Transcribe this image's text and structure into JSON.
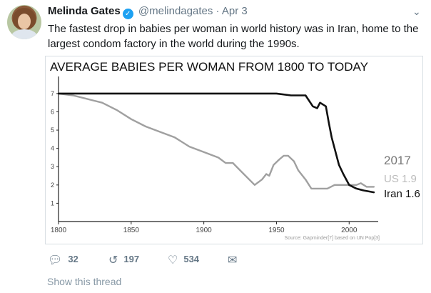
{
  "tweet": {
    "author_name": "Melinda Gates",
    "handle": "@melindagates",
    "separator": "·",
    "date": "Apr 3",
    "text": "The fastest drop in babies per woman in world history was in Iran, home to the largest condom factory in the world during the 1990s."
  },
  "actions": {
    "reply_count": "32",
    "retweet_count": "197",
    "like_count": "534"
  },
  "show_thread_label": "Show this thread",
  "colors": {
    "verified": "#1da1f2",
    "iran_line": "#111111",
    "us_line": "#a0a0a0"
  },
  "icons": {
    "reply": "reply-icon",
    "retweet": "retweet-icon",
    "like": "heart-icon",
    "dm": "envelope-icon",
    "menu": "chevron-down-icon"
  },
  "chart_data": {
    "type": "line",
    "title": "AVERAGE BABIES PER WOMAN FROM 1800 TO TODAY",
    "xlabel": "",
    "ylabel": "",
    "xlim": [
      1800,
      2020
    ],
    "ylim": [
      0,
      7.7
    ],
    "x_ticks": [
      "1800",
      "1850",
      "1900",
      "1950",
      "2000"
    ],
    "y_ticks": [
      "1",
      "2",
      "3",
      "4",
      "5",
      "6",
      "7"
    ],
    "grid": false,
    "source": "Source: Gapminder[7] based on UN Pop[3]",
    "end_label_year": "2017",
    "series": [
      {
        "name": "Iran",
        "end_label": "Iran 1.6",
        "points": [
          [
            1800,
            7.0
          ],
          [
            1850,
            7.0
          ],
          [
            1900,
            7.0
          ],
          [
            1930,
            7.0
          ],
          [
            1950,
            7.0
          ],
          [
            1960,
            6.9
          ],
          [
            1965,
            6.9
          ],
          [
            1970,
            6.9
          ],
          [
            1975,
            6.3
          ],
          [
            1978,
            6.2
          ],
          [
            1980,
            6.5
          ],
          [
            1984,
            6.3
          ],
          [
            1986,
            5.4
          ],
          [
            1988,
            4.6
          ],
          [
            1990,
            4.0
          ],
          [
            1993,
            3.1
          ],
          [
            1996,
            2.6
          ],
          [
            2000,
            2.0
          ],
          [
            2005,
            1.8
          ],
          [
            2010,
            1.7
          ],
          [
            2017,
            1.6
          ]
        ]
      },
      {
        "name": "US",
        "end_label": "US 1.9",
        "points": [
          [
            1800,
            7.0
          ],
          [
            1810,
            6.9
          ],
          [
            1820,
            6.7
          ],
          [
            1830,
            6.5
          ],
          [
            1840,
            6.1
          ],
          [
            1850,
            5.6
          ],
          [
            1860,
            5.2
          ],
          [
            1870,
            4.9
          ],
          [
            1880,
            4.6
          ],
          [
            1890,
            4.1
          ],
          [
            1900,
            3.8
          ],
          [
            1910,
            3.5
          ],
          [
            1915,
            3.2
          ],
          [
            1920,
            3.2
          ],
          [
            1925,
            2.8
          ],
          [
            1930,
            2.4
          ],
          [
            1935,
            2.0
          ],
          [
            1940,
            2.3
          ],
          [
            1943,
            2.6
          ],
          [
            1945,
            2.5
          ],
          [
            1948,
            3.1
          ],
          [
            1952,
            3.4
          ],
          [
            1955,
            3.6
          ],
          [
            1958,
            3.6
          ],
          [
            1962,
            3.3
          ],
          [
            1965,
            2.8
          ],
          [
            1970,
            2.3
          ],
          [
            1974,
            1.8
          ],
          [
            1978,
            1.8
          ],
          [
            1985,
            1.8
          ],
          [
            1990,
            2.0
          ],
          [
            1995,
            2.0
          ],
          [
            2000,
            2.0
          ],
          [
            2005,
            2.0
          ],
          [
            2008,
            2.1
          ],
          [
            2012,
            1.9
          ],
          [
            2017,
            1.9
          ]
        ]
      }
    ]
  }
}
